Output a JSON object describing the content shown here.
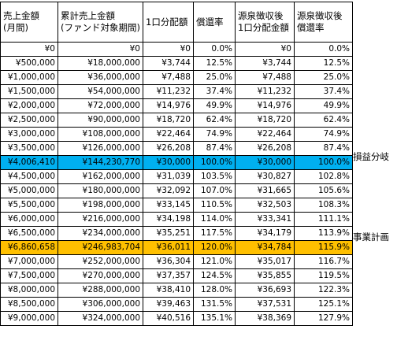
{
  "headers": {
    "col1": [
      "売上金額",
      "(月間)"
    ],
    "col2": [
      "累計売上金額",
      "(ファンド対象期間)"
    ],
    "col3": [
      "1口分配額"
    ],
    "col4": [
      "償還率"
    ],
    "col5": [
      "源泉徴収後",
      "1口分配金額"
    ],
    "col6": [
      "源泉徴収後",
      "償還率"
    ]
  },
  "rows": [
    [
      "¥0",
      "¥0",
      "¥0",
      "0.0%",
      "¥0",
      "0.0%"
    ],
    [
      "¥500,000",
      "¥18,000,000",
      "¥3,744",
      "12.5%",
      "¥3,744",
      "12.5%"
    ],
    [
      "¥1,000,000",
      "¥36,000,000",
      "¥7,488",
      "25.0%",
      "¥7,488",
      "25.0%"
    ],
    [
      "¥1,500,000",
      "¥54,000,000",
      "¥11,232",
      "37.4%",
      "¥11,232",
      "37.4%"
    ],
    [
      "¥2,000,000",
      "¥72,000,000",
      "¥14,976",
      "49.9%",
      "¥14,976",
      "49.9%"
    ],
    [
      "¥2,500,000",
      "¥90,000,000",
      "¥18,720",
      "62.4%",
      "¥18,720",
      "62.4%"
    ],
    [
      "¥3,000,000",
      "¥108,000,000",
      "¥22,464",
      "74.9%",
      "¥22,464",
      "74.9%"
    ],
    [
      "¥3,500,000",
      "¥126,000,000",
      "¥26,208",
      "87.4%",
      "¥26,208",
      "87.4%"
    ],
    [
      "¥4,006,410",
      "¥144,230,770",
      "¥30,000",
      "100.0%",
      "¥30,000",
      "100.0%"
    ],
    [
      "¥4,500,000",
      "¥162,000,000",
      "¥31,039",
      "103.5%",
      "¥30,827",
      "102.8%"
    ],
    [
      "¥5,000,000",
      "¥180,000,000",
      "¥32,092",
      "107.0%",
      "¥31,665",
      "105.6%"
    ],
    [
      "¥5,500,000",
      "¥198,000,000",
      "¥33,145",
      "110.5%",
      "¥32,503",
      "108.3%"
    ],
    [
      "¥6,000,000",
      "¥216,000,000",
      "¥34,198",
      "114.0%",
      "¥33,341",
      "111.1%"
    ],
    [
      "¥6,500,000",
      "¥234,000,000",
      "¥35,251",
      "117.5%",
      "¥34,179",
      "113.9%"
    ],
    [
      "¥6,860,658",
      "¥246,983,704",
      "¥36,011",
      "120.0%",
      "¥34,784",
      "115.9%"
    ],
    [
      "¥7,000,000",
      "¥252,000,000",
      "¥36,304",
      "121.0%",
      "¥35,017",
      "116.7%"
    ],
    [
      "¥7,500,000",
      "¥270,000,000",
      "¥37,357",
      "124.5%",
      "¥35,855",
      "119.5%"
    ],
    [
      "¥8,000,000",
      "¥288,000,000",
      "¥38,410",
      "128.0%",
      "¥36,693",
      "122.3%"
    ],
    [
      "¥8,500,000",
      "¥306,000,000",
      "¥39,463",
      "131.5%",
      "¥37,531",
      "125.1%"
    ],
    [
      "¥9,000,000",
      "¥324,000,000",
      "¥40,516",
      "135.1%",
      "¥38,369",
      "127.9%"
    ]
  ],
  "highlights": [
    {
      "row": 8,
      "label": "損益分岐",
      "color": "#00b0f0"
    },
    {
      "row": 14,
      "label": "事業計画",
      "color": "#ffc000"
    }
  ]
}
